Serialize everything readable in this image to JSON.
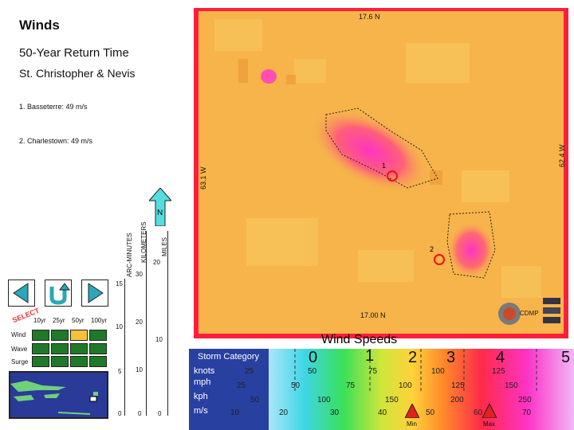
{
  "header": {
    "title": "Winds",
    "subtitle": "50-Year Return Time",
    "island": "St. Christopher & Nevis"
  },
  "locations": [
    {
      "label": "1. Basseterre:  49 m/s"
    },
    {
      "label": "2. Charlestown:  49 m/s"
    }
  ],
  "map": {
    "top_lat": "17.6 N",
    "bottom_lat": "17.00 N",
    "left_lon": "63.1 W",
    "right_lon": "62.4 W",
    "north_label": "N",
    "marker_1": "1",
    "marker_2": "2",
    "logo_text": "CDMP"
  },
  "scale": {
    "arc_label": "ARC-MINUTES",
    "km_label": "KILOMETERS",
    "mi_label": "MILES",
    "arc_ticks": [
      "15",
      "10",
      "5",
      "0"
    ],
    "km_ticks": [
      "30",
      "20",
      "10",
      "0"
    ],
    "mi_ticks": [
      "20",
      "10",
      "0"
    ]
  },
  "selector": {
    "select_label": "SELECT",
    "columns": [
      "10yr",
      "25yr",
      "50yr",
      "100yr"
    ],
    "rows": [
      "Wind",
      "Wave",
      "Surge"
    ],
    "selected": {
      "row": 0,
      "col": 2
    }
  },
  "legend": {
    "title": "Wind Speeds",
    "storm_label": "Storm Category",
    "categories": [
      "0",
      "1",
      "2",
      "3",
      "4",
      "5"
    ],
    "knots_label": "knots",
    "mph_label": "mph",
    "kph_label": "kph",
    "ms_label": "m/s",
    "knots": [
      "25",
      "50",
      "75",
      "100",
      "125"
    ],
    "mph": [
      "25",
      "50",
      "75",
      "100",
      "125",
      "150"
    ],
    "kph": [
      "50",
      "100",
      "150",
      "200",
      "250"
    ],
    "ms": [
      "10",
      "20",
      "30",
      "40",
      "50",
      "60",
      "70"
    ],
    "min_label": "Min",
    "max_label": "Max"
  }
}
